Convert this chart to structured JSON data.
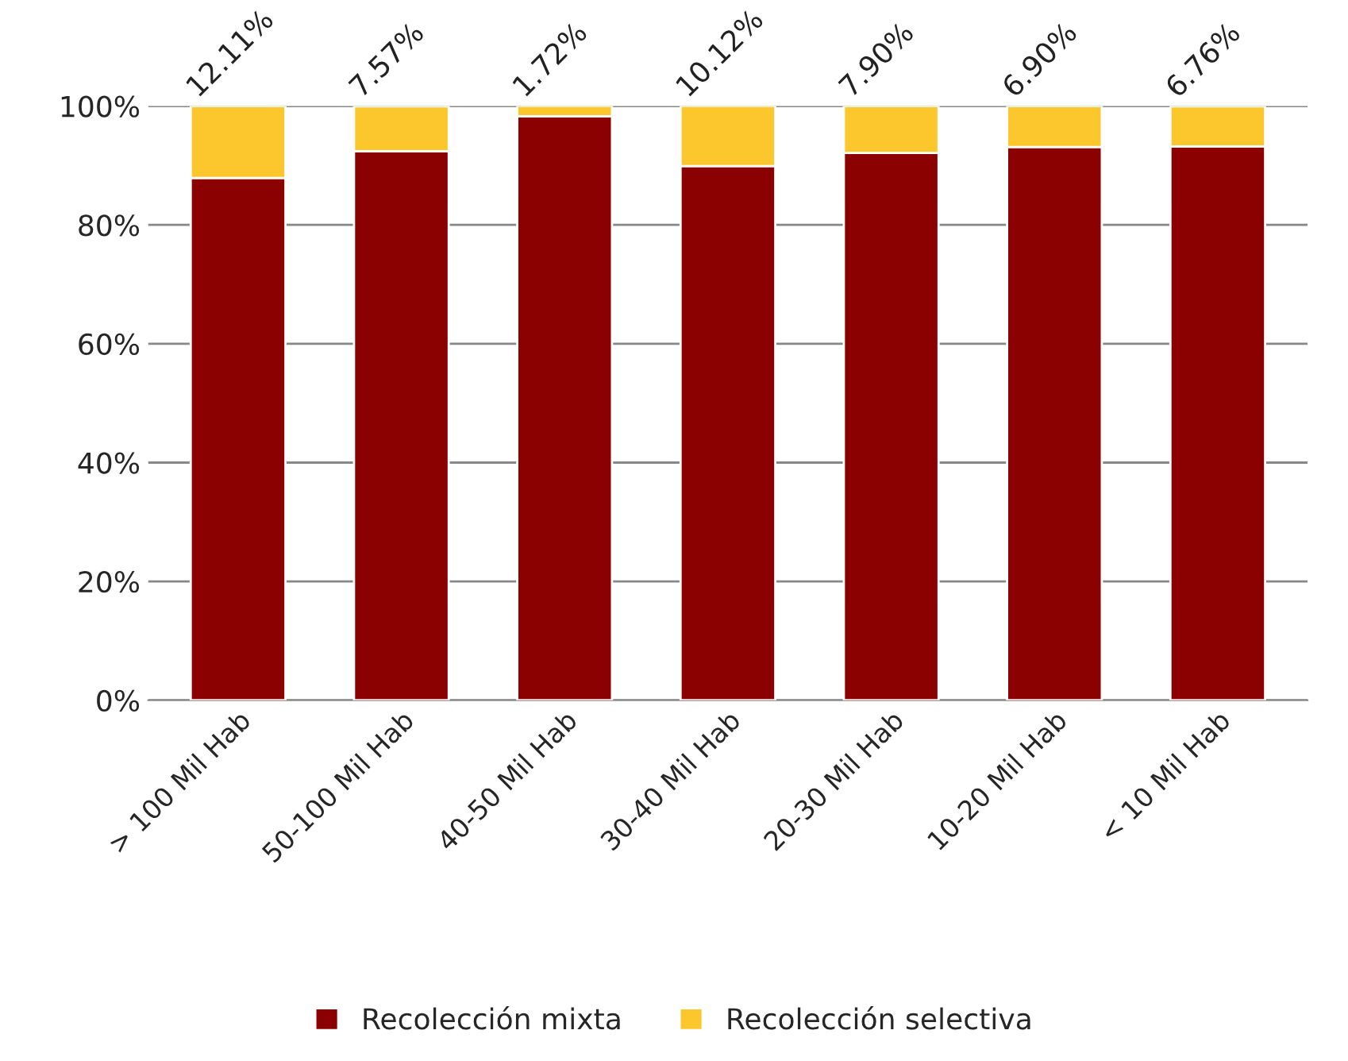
{
  "chart_data": {
    "type": "bar",
    "stacked": true,
    "categories": [
      "> 100 Mil Hab",
      "50-100 Mil Hab",
      "40-50 Mil Hab",
      "30-40 Mil Hab",
      "20-30 Mil Hab",
      "10-20 Mil Hab",
      "< 10 Mil Hab"
    ],
    "series": [
      {
        "name": "Recolección mixta",
        "color": "#8b0000",
        "values": [
          87.9,
          92.4,
          98.3,
          89.9,
          92.1,
          93.1,
          93.2
        ]
      },
      {
        "name": "Recolección selectiva",
        "color": "#fcc72c",
        "values": [
          12.11,
          7.57,
          1.72,
          10.12,
          7.9,
          6.9,
          6.76
        ],
        "value_labels": [
          "12.11%",
          "7.57%",
          "1.72%",
          "10.12%",
          "7.90%",
          "6.90%",
          "6.76%"
        ]
      }
    ],
    "ylim": [
      0,
      100
    ],
    "yticks": [
      {
        "value": 0,
        "label": "0%"
      },
      {
        "value": 20,
        "label": "20%"
      },
      {
        "value": 40,
        "label": "40%"
      },
      {
        "value": 60,
        "label": "60%"
      },
      {
        "value": 80,
        "label": "80%"
      },
      {
        "value": 100,
        "label": "100%"
      }
    ],
    "grid": "y",
    "legend": "bottom"
  }
}
